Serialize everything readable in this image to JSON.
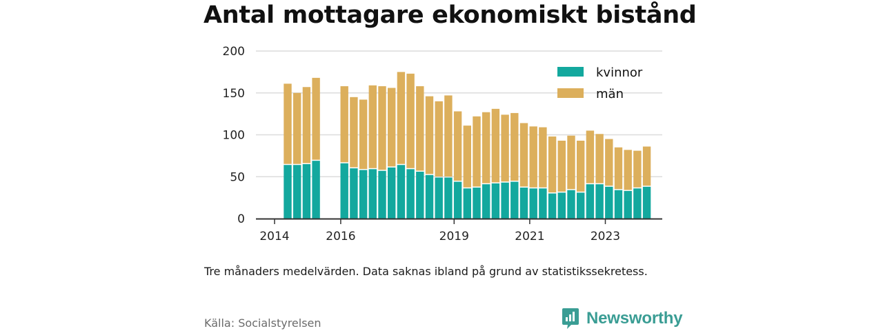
{
  "title": "Antal mottagare ekonomiskt bistånd",
  "caption": "Tre månaders medelvärden. Data saknas ibland på grund av statistikssekretess.",
  "source": "Källa: Socialstyrelsen",
  "brand": {
    "name": "Newsworthy",
    "icon": "newsworthy-logo-icon",
    "color": "#3a9d94"
  },
  "chart_data": {
    "type": "bar",
    "stacked": true,
    "x": [
      "2014-Q2",
      "2014-Q3",
      "2014-Q4",
      "2015-Q1",
      "2015-Q2",
      "2015-Q3",
      "2015-Q4",
      "2016-Q1",
      "2016-Q2",
      "2016-Q3",
      "2016-Q4",
      "2017-Q1",
      "2017-Q2",
      "2017-Q3",
      "2017-Q4",
      "2018-Q1",
      "2018-Q2",
      "2018-Q3",
      "2018-Q4",
      "2019-Q1",
      "2019-Q2",
      "2019-Q3",
      "2019-Q4",
      "2020-Q1",
      "2020-Q2",
      "2020-Q3",
      "2020-Q4",
      "2021-Q1",
      "2021-Q2",
      "2021-Q3",
      "2021-Q4",
      "2022-Q1",
      "2022-Q2",
      "2022-Q3",
      "2022-Q4",
      "2023-Q1",
      "2023-Q2",
      "2023-Q3",
      "2023-Q4"
    ],
    "series": [
      {
        "name": "kvinnor",
        "color": "#13a89e",
        "values": [
          64,
          64,
          65,
          69,
          null,
          null,
          66,
          60,
          58,
          59,
          57,
          61,
          64,
          59,
          56,
          52,
          49,
          49,
          44,
          36,
          37,
          41,
          42,
          43,
          44,
          37,
          36,
          36,
          30,
          31,
          34,
          31,
          41,
          41,
          38,
          34,
          33,
          36,
          38
        ]
      },
      {
        "name": "män",
        "color": "#dcaf5c",
        "values": [
          97,
          86,
          92,
          99,
          null,
          null,
          92,
          85,
          84,
          100,
          101,
          95,
          111,
          114,
          102,
          94,
          91,
          98,
          84,
          75,
          85,
          86,
          89,
          81,
          82,
          77,
          74,
          73,
          68,
          62,
          65,
          62,
          64,
          60,
          57,
          51,
          49,
          45,
          48
        ]
      }
    ],
    "xticks": [
      {
        "label": "2014",
        "at": "2014-Q2"
      },
      {
        "label": "2016",
        "at": "2016-Q1"
      },
      {
        "label": "2019",
        "at": "2019-Q1"
      },
      {
        "label": "2021",
        "at": "2021-Q1"
      },
      {
        "label": "2023",
        "at": "2023-Q1"
      }
    ],
    "yticks": [
      0,
      50,
      100,
      150,
      200
    ],
    "ylim": [
      0,
      200
    ],
    "grid": "horizontal",
    "legend": "top-right",
    "xlabel": "",
    "ylabel": ""
  }
}
